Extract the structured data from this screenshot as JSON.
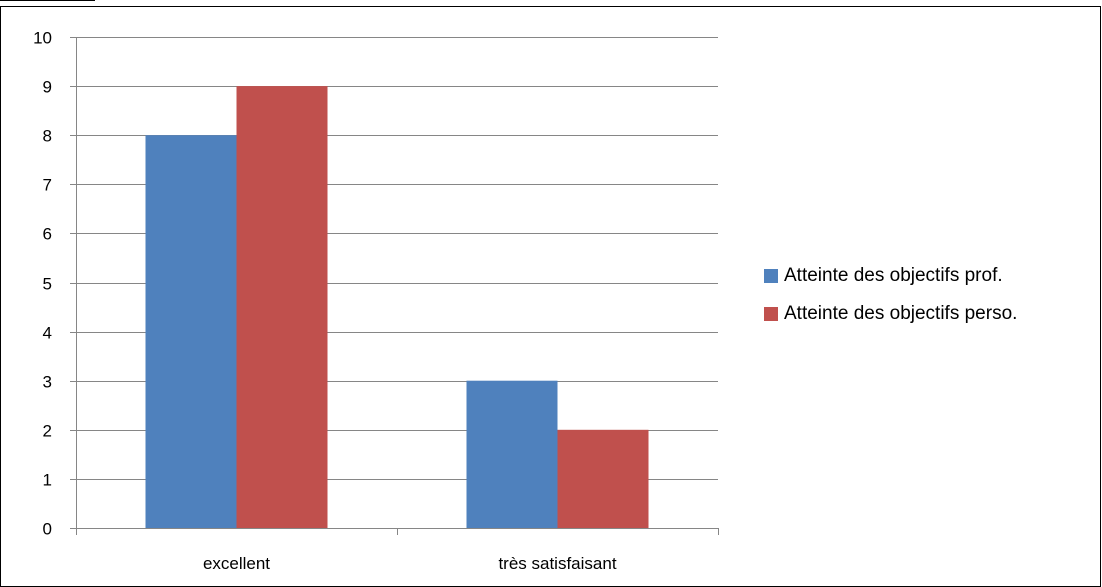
{
  "chart_data": {
    "type": "bar",
    "categories": [
      "excellent",
      "très satisfaisant"
    ],
    "series": [
      {
        "name": "Atteinte des objectifs prof.",
        "values": [
          8,
          3
        ],
        "color": "#4F81BD"
      },
      {
        "name": "Atteinte des objectifs perso.",
        "values": [
          9,
          2
        ],
        "color": "#C0504D"
      }
    ],
    "ylim": [
      0,
      10
    ],
    "yticks": [
      0,
      1,
      2,
      3,
      4,
      5,
      6,
      7,
      8,
      9,
      10
    ],
    "grid": true,
    "legend_position": "right",
    "title": "",
    "xlabel": "",
    "ylabel": ""
  }
}
